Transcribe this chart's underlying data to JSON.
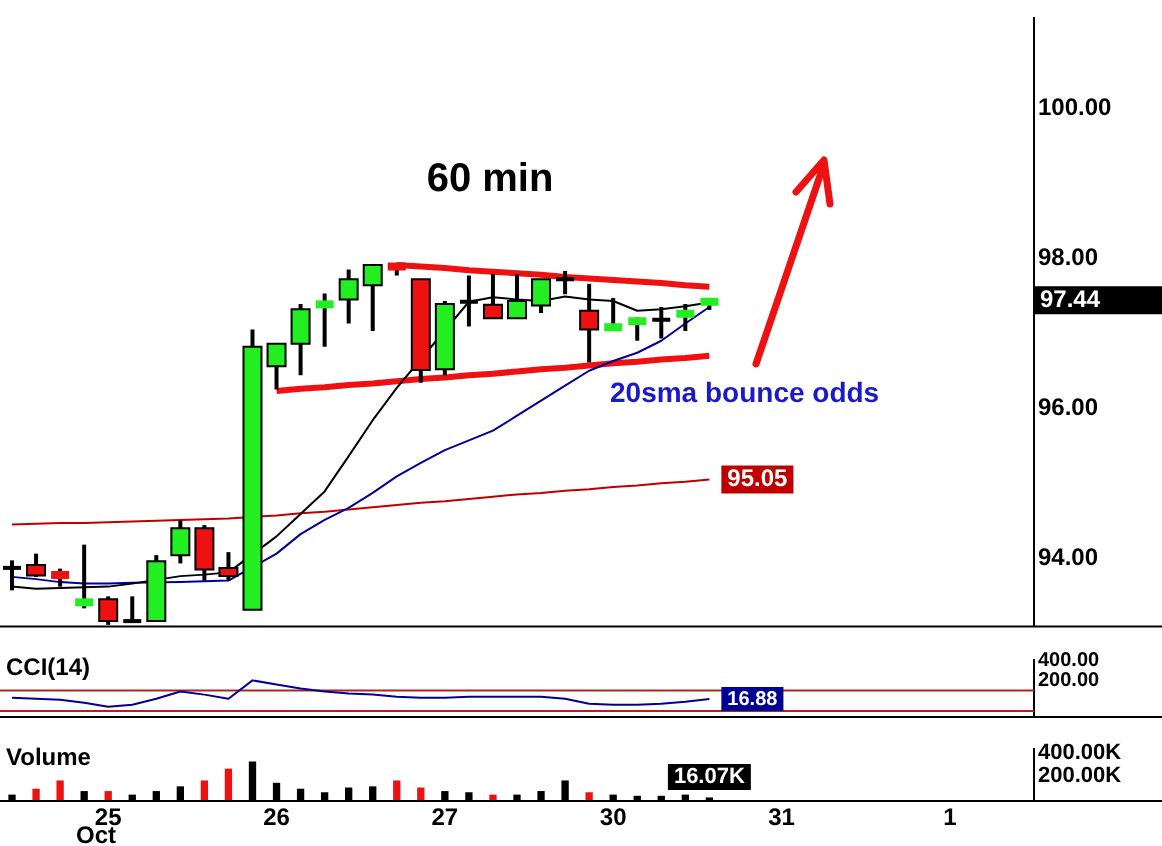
{
  "chart_data": [
    {
      "type": "candlestick",
      "title": "60 min",
      "categories": [
        null,
        null,
        null,
        null,
        "25",
        null,
        null,
        null,
        null,
        null,
        null,
        "26",
        null,
        null,
        null,
        null,
        null,
        null,
        "27",
        null,
        null,
        null,
        null,
        null,
        null,
        "30",
        null,
        null,
        null,
        null,
        null,
        null,
        "31",
        null,
        null,
        null,
        null,
        null,
        null,
        "1",
        null,
        null,
        null
      ],
      "ohlc": [
        [
          93.87,
          93.97,
          93.57,
          93.87
        ],
        [
          93.91,
          94.06,
          93.75,
          93.77
        ],
        [
          93.82,
          93.86,
          93.62,
          93.73
        ],
        [
          93.37,
          94.18,
          93.33,
          93.45
        ],
        [
          93.45,
          93.49,
          93.11,
          93.16
        ],
        [
          93.16,
          93.49,
          93.16,
          93.16
        ],
        [
          93.16,
          94.04,
          93.16,
          93.96
        ],
        [
          94.04,
          94.5,
          93.93,
          94.4
        ],
        [
          94.4,
          94.44,
          93.7,
          93.85
        ],
        [
          93.87,
          94.08,
          93.7,
          93.76
        ],
        [
          93.31,
          97.05,
          93.31,
          96.82
        ],
        [
          96.56,
          96.86,
          96.25,
          96.86
        ],
        [
          96.86,
          97.39,
          96.44,
          97.32
        ],
        [
          97.34,
          97.53,
          96.82,
          97.43
        ],
        [
          97.45,
          97.85,
          97.13,
          97.72
        ],
        [
          97.64,
          97.91,
          97.03,
          97.91
        ],
        [
          97.91,
          97.93,
          97.77,
          97.87
        ],
        [
          97.72,
          97.72,
          96.34,
          96.51
        ],
        [
          96.52,
          97.43,
          96.44,
          97.39
        ],
        [
          97.42,
          97.77,
          97.09,
          97.42
        ],
        [
          97.38,
          97.79,
          97.2,
          97.2
        ],
        [
          97.2,
          97.79,
          97.2,
          97.43
        ],
        [
          97.37,
          97.72,
          97.27,
          97.72
        ],
        [
          97.72,
          97.83,
          97.52,
          97.72
        ],
        [
          97.3,
          97.66,
          96.61,
          97.05
        ],
        [
          97.05,
          97.47,
          97.05,
          97.11
        ],
        [
          97.11,
          97.21,
          96.9,
          97.21
        ],
        [
          97.18,
          97.35,
          96.93,
          97.18
        ],
        [
          97.24,
          97.39,
          97.03,
          97.28
        ],
        [
          97.4,
          97.47,
          97.31,
          97.44
        ],
        null,
        null,
        null,
        null,
        null,
        null,
        null,
        null,
        null,
        null,
        null,
        null,
        null
      ],
      "colors": [
        "#000000",
        "#ee1111",
        "#ee1111",
        "#22ee22",
        "#ee1111",
        "#000000",
        "#22ee22",
        "#22ee22",
        "#ee1111",
        "#ee1111",
        "#22ee22",
        "#22ee22",
        "#22ee22",
        "#22ee22",
        "#22ee22",
        "#22ee22",
        "#ee1111",
        "#ee1111",
        "#22ee22",
        "#000000",
        "#ee1111",
        "#22ee22",
        "#22ee22",
        "#000000",
        "#ee1111",
        "#22ee22",
        "#22ee22",
        "#000000",
        "#22ee22",
        "#22ee22",
        null,
        null,
        null,
        null,
        null,
        null,
        null,
        null,
        null,
        null,
        null,
        null,
        null
      ],
      "value_labels": [
        null,
        null,
        null,
        null,
        null,
        null,
        null,
        null,
        null,
        null,
        null,
        null,
        null,
        null,
        null,
        null,
        null,
        null,
        null,
        null,
        null,
        null,
        null,
        null,
        null,
        null,
        null,
        null,
        null,
        "97.44",
        null,
        null,
        null,
        null,
        null,
        null,
        null,
        null,
        null,
        null,
        null,
        null,
        null
      ],
      "series": [
        {
          "type": "line",
          "color": "#000000",
          "values": [
            93.62,
            93.59,
            93.6,
            93.61,
            93.62,
            93.66,
            null,
            93.76,
            93.78,
            93.81,
            null,
            94.29,
            94.59,
            94.89,
            95.36,
            95.84,
            96.27,
            null,
            null,
            97.42,
            97.48,
            97.45,
            97.43,
            97.49,
            97.45,
            97.43,
            97.3,
            97.32,
            97.36,
            97.41,
            null,
            null,
            null,
            null,
            null,
            null,
            null,
            null,
            null,
            null,
            null,
            null,
            null
          ]
        },
        {
          "type": "line",
          "color": "#000099",
          "values": [
            93.75,
            93.72,
            93.68,
            93.66,
            93.66,
            93.67,
            null,
            93.68,
            93.69,
            93.7,
            null,
            94.06,
            94.32,
            94.51,
            94.67,
            94.87,
            95.09,
            95.27,
            95.44,
            95.57,
            95.7,
            95.9,
            96.1,
            96.3,
            96.5,
            96.63,
            96.74,
            96.9,
            97.13,
            97.35,
            null,
            null,
            null,
            null,
            null,
            null,
            null,
            null,
            null,
            null,
            null,
            null,
            null
          ]
        },
        {
          "type": "line",
          "color": "#c00000",
          "values": [
            94.45,
            94.46,
            94.47,
            94.47,
            94.48,
            94.49,
            94.5,
            94.51,
            94.52,
            94.53,
            null,
            94.57,
            94.6,
            94.62,
            94.65,
            94.68,
            94.71,
            94.74,
            94.76,
            94.79,
            94.82,
            94.85,
            94.87,
            94.9,
            94.92,
            94.95,
            94.97,
            95.0,
            95.02,
            95.05,
            null,
            null,
            null,
            null,
            null,
            null,
            null,
            null,
            null,
            null,
            null,
            null,
            null
          ],
          "value_labels": [
            null,
            null,
            null,
            null,
            null,
            null,
            null,
            null,
            null,
            null,
            null,
            null,
            null,
            null,
            null,
            null,
            null,
            null,
            null,
            null,
            null,
            null,
            null,
            null,
            null,
            null,
            null,
            null,
            null,
            "95.05",
            null,
            null,
            null,
            null,
            null,
            null,
            null,
            null,
            null,
            null,
            null,
            null,
            null
          ]
        },
        {
          "type": "line",
          "color": "#ee1111",
          "values": [
            null,
            null,
            null,
            null,
            null,
            null,
            null,
            null,
            null,
            null,
            null,
            null,
            null,
            null,
            null,
            null,
            97.91,
            97.89,
            97.87,
            97.84,
            97.82,
            97.8,
            97.78,
            97.75,
            97.73,
            97.71,
            97.69,
            97.67,
            97.64,
            97.62,
            null,
            null,
            null,
            null,
            null,
            null,
            null,
            null,
            null,
            null,
            null,
            null,
            null
          ]
        },
        {
          "type": "line",
          "color": "#ee1111",
          "values": [
            null,
            null,
            null,
            null,
            null,
            null,
            null,
            null,
            null,
            null,
            null,
            96.23,
            96.26,
            96.28,
            96.31,
            96.33,
            96.36,
            96.39,
            96.41,
            96.44,
            96.46,
            96.49,
            96.52,
            96.54,
            96.57,
            96.6,
            96.62,
            96.65,
            96.67,
            96.7,
            null,
            null,
            null,
            null,
            null,
            null,
            null,
            null,
            null,
            null,
            null,
            null,
            null
          ]
        }
      ],
      "annotations": [
        "20sma bounce odds"
      ],
      "ylim": [
        93.1,
        101.2
      ],
      "yticks": [
        {
          "value": 94,
          "label": "94.00"
        },
        {
          "value": 96,
          "label": "96.00"
        },
        {
          "value": 98,
          "label": "98.00"
        },
        {
          "value": 100,
          "label": "100.00"
        }
      ],
      "tick_labels": "y"
    },
    {
      "type": "line",
      "title": "CCI(14)",
      "categories": [
        null,
        null,
        null,
        null,
        "25",
        null,
        null,
        null,
        null,
        null,
        null,
        "26",
        null,
        null,
        null,
        null,
        null,
        null,
        "27",
        null,
        null,
        null,
        null,
        null,
        null,
        "30",
        null,
        null,
        null,
        null,
        null,
        null,
        "31",
        null,
        null,
        null,
        null,
        null,
        null,
        "1",
        null,
        null,
        null
      ],
      "values": [
        30,
        20,
        10,
        -20,
        -60,
        -40,
        20,
        90,
        60,
        20,
        200,
        160,
        120,
        90,
        70,
        60,
        40,
        30,
        30,
        40,
        40,
        40,
        40,
        20,
        -30,
        -40,
        -40,
        -30,
        -10,
        16.88,
        null,
        null,
        null,
        null,
        null,
        null,
        null,
        null,
        null,
        null,
        null,
        null,
        null
      ],
      "color": "#000099",
      "value_labels": [
        null,
        null,
        null,
        null,
        null,
        null,
        null,
        null,
        null,
        null,
        null,
        null,
        null,
        null,
        null,
        null,
        null,
        null,
        null,
        null,
        null,
        null,
        null,
        null,
        null,
        null,
        null,
        null,
        null,
        "16.88",
        null,
        null,
        null,
        null,
        null,
        null,
        null,
        null,
        null,
        null,
        null,
        null,
        null
      ],
      "ref_lines": [
        {
          "axis": "y",
          "value": 100,
          "color": "#b22222"
        },
        {
          "axis": "y",
          "value": -100,
          "color": "#b22222"
        }
      ],
      "ylim": [
        -150,
        400
      ],
      "yticks": [
        {
          "value": 200,
          "label": "200.00"
        },
        {
          "value": 400,
          "label": "400.00"
        }
      ],
      "tick_labels": "y"
    },
    {
      "type": "bar",
      "title": "Volume",
      "categories": [
        null,
        null,
        null,
        null,
        "25",
        null,
        null,
        null,
        null,
        null,
        null,
        "26",
        null,
        null,
        null,
        null,
        null,
        null,
        "27",
        null,
        null,
        null,
        null,
        null,
        null,
        "30",
        null,
        null,
        null,
        null,
        null,
        null,
        "31",
        null,
        null,
        null,
        null,
        null,
        null,
        "1",
        null,
        null,
        null
      ],
      "values": [
        40000,
        90000,
        160000,
        70000,
        70000,
        40000,
        70000,
        110000,
        160000,
        260000,
        320000,
        140000,
        90000,
        60000,
        100000,
        110000,
        160000,
        100000,
        70000,
        60000,
        40000,
        40000,
        70000,
        160000,
        60000,
        40000,
        30000,
        30000,
        40000,
        16070,
        null,
        null,
        null,
        null,
        null,
        null,
        null,
        null,
        null,
        null,
        null,
        null,
        null
      ],
      "colors": [
        "#000000",
        "#ee1111",
        "#ee1111",
        "#000000",
        "#ee1111",
        "#000000",
        "#000000",
        "#000000",
        "#ee1111",
        "#ee1111",
        "#000000",
        "#000000",
        "#000000",
        "#000000",
        "#000000",
        "#000000",
        "#ee1111",
        "#ee1111",
        "#000000",
        "#000000",
        "#ee1111",
        "#000000",
        "#000000",
        "#000000",
        "#ee1111",
        "#000000",
        "#000000",
        "#000000",
        "#000000",
        "#000000",
        null,
        null,
        null,
        null,
        null,
        null,
        null,
        null,
        null,
        null,
        null,
        null,
        null
      ],
      "value_labels": [
        null,
        null,
        null,
        null,
        null,
        null,
        null,
        null,
        null,
        null,
        null,
        null,
        null,
        null,
        null,
        null,
        null,
        null,
        null,
        null,
        null,
        null,
        null,
        null,
        null,
        null,
        null,
        null,
        null,
        "16.07K",
        null,
        null,
        null,
        null,
        null,
        null,
        null,
        null,
        null,
        null,
        null,
        null,
        null
      ],
      "annotations": [
        "Oct"
      ],
      "ylim": [
        0,
        430000
      ],
      "yticks": [
        {
          "value": 200000,
          "label": "200.00K"
        },
        {
          "value": 400000,
          "label": "400.00K"
        }
      ]
    }
  ]
}
